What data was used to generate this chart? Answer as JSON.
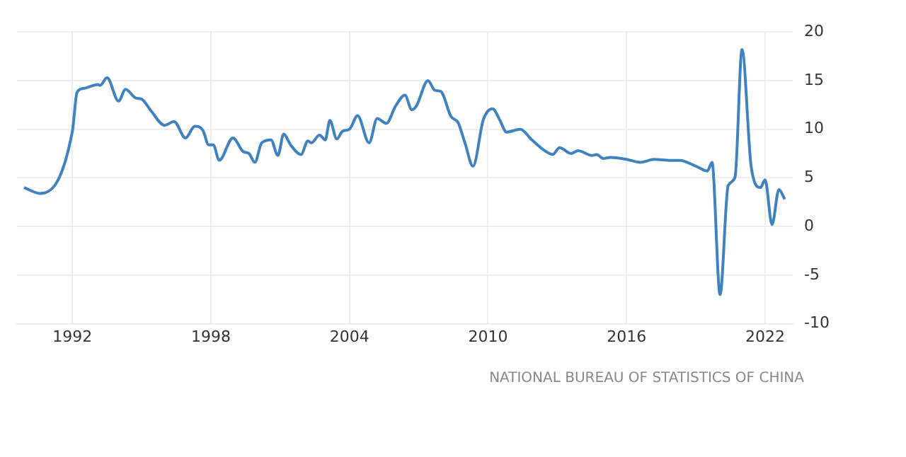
{
  "chart_data": {
    "type": "line",
    "x": [
      1989.9,
      1990.6,
      1992.0,
      1992.2,
      1992.5,
      1993.1,
      1993.2,
      1993.5,
      1994.0,
      1994.3,
      1994.75,
      1995.0,
      1995.4,
      1996.0,
      1996.4,
      1996.9,
      1997.3,
      1997.65,
      1997.9,
      1998.1,
      1998.36,
      1998.95,
      1999.4,
      1999.65,
      1999.9,
      2000.2,
      2000.6,
      2000.9,
      2001.15,
      2001.45,
      2001.9,
      2002.2,
      2002.35,
      2002.7,
      2002.95,
      2003.15,
      2003.45,
      2003.7,
      2004.0,
      2004.35,
      2004.85,
      2005.2,
      2005.6,
      2006.0,
      2006.4,
      2006.7,
      2006.9,
      2007.4,
      2007.7,
      2007.95,
      2008.4,
      2008.7,
      2009.0,
      2009.35,
      2009.8,
      2010.2,
      2010.5,
      2010.8,
      2011.4,
      2011.9,
      2012.45,
      2012.8,
      2013.1,
      2013.6,
      2013.9,
      2014.5,
      2014.7,
      2015.0,
      2015.3,
      2016.0,
      2016.6,
      2017.2,
      2017.9,
      2018.3,
      2019.0,
      2019.5,
      2019.7,
      2020.05,
      2020.4,
      2020.7,
      2021.0,
      2021.4,
      2021.8,
      2022.0,
      2022.3,
      2022.6,
      2022.85
    ],
    "series": [
      {
        "color": "#3f82bf",
        "values": [
          4.0,
          3.4,
          9.8,
          13.8,
          14.2,
          14.6,
          14.5,
          15.3,
          12.9,
          14.1,
          13.2,
          13.1,
          11.9,
          10.4,
          10.8,
          9.1,
          10.3,
          9.9,
          8.4,
          8.4,
          6.8,
          9.1,
          7.7,
          7.5,
          6.6,
          8.6,
          8.9,
          7.3,
          9.5,
          8.4,
          7.4,
          8.8,
          8.6,
          9.4,
          8.9,
          10.9,
          9.0,
          9.8,
          10.0,
          11.4,
          8.6,
          11.1,
          10.6,
          12.4,
          13.5,
          12.0,
          12.4,
          15.0,
          14.0,
          13.9,
          11.3,
          10.7,
          8.6,
          6.2,
          11.0,
          12.1,
          11.0,
          9.7,
          10.0,
          8.9,
          7.8,
          7.4,
          8.1,
          7.5,
          7.8,
          7.3,
          7.4,
          7.0,
          7.1,
          6.9,
          6.6,
          6.9,
          6.8,
          6.8,
          6.2,
          5.7,
          6.6,
          -7.0,
          4.2,
          5.1,
          18.2,
          6.1,
          4.0,
          4.8,
          0.2,
          3.8,
          2.8
        ]
      }
    ],
    "xlim": [
      1989.6,
      2023.2
    ],
    "xticks": [
      1992,
      1998,
      2004,
      2010,
      2016,
      2022
    ],
    "ylim": [
      -10,
      20
    ],
    "yticks": [
      -10,
      -5,
      0,
      5,
      10,
      15,
      20
    ],
    "grid": true,
    "legend": false,
    "marker": "none",
    "line_style": "solid",
    "annotations": [
      "NATIONAL BUREAU OF STATISTICS OF CHINA"
    ]
  }
}
